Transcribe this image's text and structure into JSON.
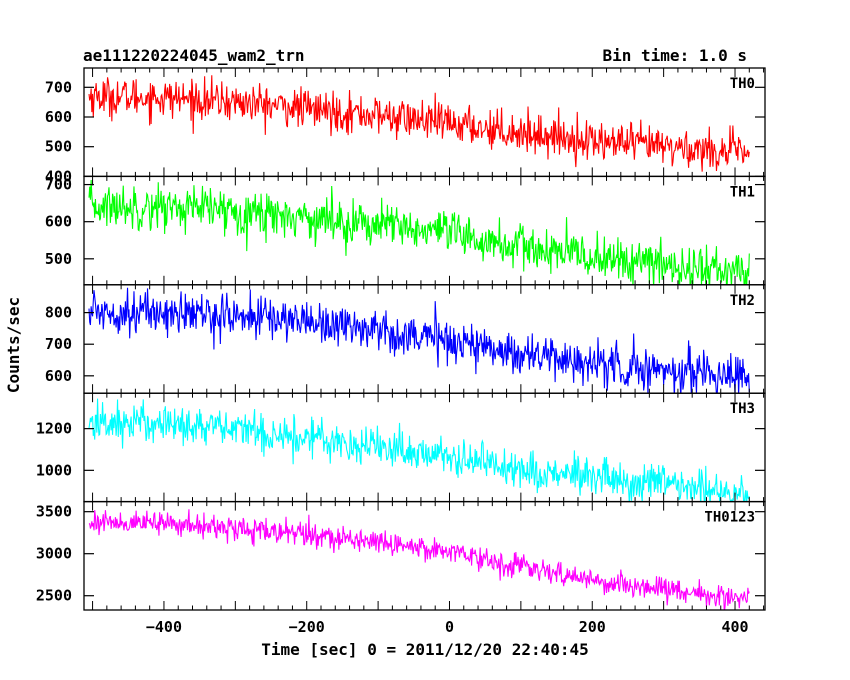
{
  "header": {
    "title": "ae111220224045_wam2_trn",
    "bin_time": "Bin time: 1.0 s"
  },
  "chart_data": {
    "type": "line",
    "xlabel": "Time [sec] 0 = 2011/12/20 22:40:45",
    "ylabel": "Counts/sec",
    "xlim": [
      -512,
      442
    ],
    "x_ticks": [
      -400,
      -200,
      0,
      200,
      400
    ],
    "x_range_data": [
      -505,
      420
    ],
    "bin_seconds": 1.0,
    "panels": [
      {
        "name": "TH0",
        "color": "#ff0000",
        "ylim": [
          400,
          765
        ],
        "yticks": [
          400,
          500,
          600,
          700
        ],
        "noise": 33,
        "trend": [
          [
            -505,
            670
          ],
          [
            -400,
            665
          ],
          [
            -300,
            650
          ],
          [
            -200,
            628
          ],
          [
            -100,
            605
          ],
          [
            0,
            578
          ],
          [
            100,
            548
          ],
          [
            200,
            520
          ],
          [
            300,
            500
          ],
          [
            420,
            478
          ]
        ]
      },
      {
        "name": "TH1",
        "color": "#00ff00",
        "ylim": [
          430,
          722
        ],
        "yticks": [
          500,
          600,
          700
        ],
        "noise": 30,
        "trend": [
          [
            -505,
            642
          ],
          [
            -400,
            640
          ],
          [
            -300,
            630
          ],
          [
            -200,
            612
          ],
          [
            -100,
            592
          ],
          [
            0,
            565
          ],
          [
            100,
            530
          ],
          [
            200,
            505
          ],
          [
            300,
            483
          ],
          [
            420,
            462
          ]
        ]
      },
      {
        "name": "TH2",
        "color": "#0000ff",
        "ylim": [
          545,
          888
        ],
        "yticks": [
          600,
          700,
          800
        ],
        "noise": 34,
        "trend": [
          [
            -505,
            805
          ],
          [
            -400,
            800
          ],
          [
            -300,
            790
          ],
          [
            -200,
            775
          ],
          [
            -100,
            745
          ],
          [
            0,
            712
          ],
          [
            100,
            672
          ],
          [
            200,
            638
          ],
          [
            300,
            617
          ],
          [
            420,
            603
          ]
        ]
      },
      {
        "name": "TH3",
        "color": "#00ffff",
        "ylim": [
          850,
          1370
        ],
        "yticks": [
          1000,
          1200
        ],
        "noise": 48,
        "trend": [
          [
            -505,
            1225
          ],
          [
            -400,
            1230
          ],
          [
            -300,
            1195
          ],
          [
            -200,
            1160
          ],
          [
            -100,
            1115
          ],
          [
            0,
            1065
          ],
          [
            100,
            1008
          ],
          [
            200,
            960
          ],
          [
            300,
            928
          ],
          [
            420,
            893
          ]
        ]
      },
      {
        "name": "TH0123",
        "color": "#ff00ff",
        "ylim": [
          2330,
          3620
        ],
        "yticks": [
          2500,
          3000,
          3500
        ],
        "noise": 70,
        "trend": [
          [
            -505,
            3380
          ],
          [
            -400,
            3360
          ],
          [
            -300,
            3300
          ],
          [
            -200,
            3230
          ],
          [
            -100,
            3140
          ],
          [
            0,
            3040
          ],
          [
            100,
            2840
          ],
          [
            200,
            2680
          ],
          [
            300,
            2580
          ],
          [
            420,
            2455
          ]
        ]
      }
    ]
  }
}
